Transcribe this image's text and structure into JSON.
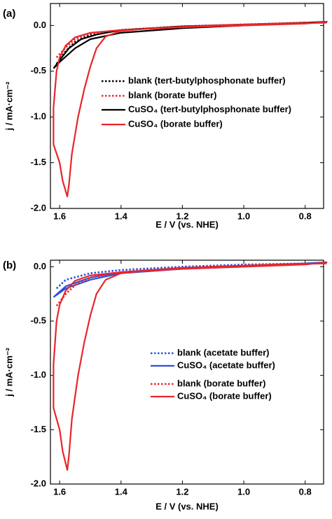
{
  "chart_data": [
    {
      "type": "line",
      "label": "(a)",
      "x_label": "E / V (vs. NHE)",
      "y_label": "j / mA·cm⁻²",
      "xlim": [
        1.63,
        0.74
      ],
      "ylim": [
        -2.0,
        0.24
      ],
      "xticks": [
        1.6,
        1.4,
        1.2,
        {
          "value": 1.0,
          "label": "1.0"
        },
        0.8
      ],
      "yticks": [
        {
          "value": 0,
          "label": "0.0"
        },
        -0.5,
        {
          "value": -1.0,
          "label": "-1.0"
        },
        -1.5,
        {
          "value": -2.0,
          "label": "-2.0"
        }
      ],
      "series": [
        {
          "name": "blank (tert-butylphosphonate buffer)",
          "color": "#000000",
          "dash": "dotted",
          "x": [
            1.61,
            1.58,
            1.55,
            1.5,
            1.4,
            1.2,
            1.0,
            0.8
          ],
          "values": [
            -0.42,
            -0.28,
            -0.18,
            -0.1,
            -0.05,
            -0.01,
            0.01,
            0.03
          ]
        },
        {
          "name": "blank (borate buffer)",
          "color": "#e8262a",
          "dash": "dotted",
          "x": [
            1.61,
            1.58,
            1.55,
            1.5,
            1.4,
            1.2,
            1.0,
            0.8
          ],
          "values": [
            -0.35,
            -0.24,
            -0.15,
            -0.09,
            -0.05,
            -0.01,
            0.01,
            0.03
          ]
        },
        {
          "name": "CuSO₄ (tert-butylphosphonate buffer)",
          "color": "#000000",
          "dash": "solid",
          "x": [
            1.62,
            1.6,
            1.57,
            1.53,
            1.48,
            1.4,
            1.2,
            1.0,
            0.8,
            0.73,
            0.8,
            1.0,
            1.2,
            1.4,
            1.5,
            1.55,
            1.6,
            1.62
          ],
          "values": [
            -0.47,
            -0.38,
            -0.25,
            -0.15,
            -0.1,
            -0.05,
            -0.01,
            0.01,
            0.03,
            0.04,
            0.03,
            0.0,
            -0.03,
            -0.08,
            -0.15,
            -0.25,
            -0.4,
            -0.47
          ]
        },
        {
          "name": "CuSO₄ (borate buffer)",
          "color": "#e8262a",
          "dash": "solid",
          "x": [
            0.73,
            0.9,
            1.1,
            1.3,
            1.4,
            1.45,
            1.48,
            1.5,
            1.52,
            1.54,
            1.56,
            1.57,
            1.575,
            1.59,
            1.6,
            1.62,
            1.62,
            1.61,
            1.6,
            1.58,
            1.55,
            1.5,
            1.4,
            1.2,
            1.0,
            0.8,
            0.73
          ],
          "values": [
            0.03,
            0.02,
            0.0,
            -0.03,
            -0.06,
            -0.12,
            -0.25,
            -0.45,
            -0.7,
            -1.0,
            -1.4,
            -1.75,
            -1.87,
            -1.7,
            -1.5,
            -1.3,
            -0.9,
            -0.5,
            -0.35,
            -0.22,
            -0.13,
            -0.08,
            -0.05,
            -0.02,
            0.0,
            0.02,
            0.04
          ]
        }
      ]
    },
    {
      "type": "line",
      "label": "(b)",
      "x_label": "E / V (vs. NHE)",
      "y_label": "j / mA·cm⁻²",
      "xlim": [
        1.63,
        0.74
      ],
      "ylim": [
        -2.0,
        0.06
      ],
      "xticks": [
        1.6,
        1.4,
        1.2,
        {
          "value": 1.0,
          "label": "1.0"
        },
        0.8
      ],
      "yticks": [
        {
          "value": 0,
          "label": "0.0"
        },
        -0.5,
        {
          "value": -1.0,
          "label": "-1.0"
        },
        -1.5,
        {
          "value": -2.0,
          "label": "-2.0"
        }
      ],
      "series": [
        {
          "name": "blank (acetate buffer)",
          "color": "#2b50e0",
          "dash": "dotted",
          "x": [
            1.61,
            1.58,
            1.5,
            1.4,
            1.2,
            1.0,
            0.8,
            0.73
          ],
          "values": [
            -0.2,
            -0.12,
            -0.06,
            -0.03,
            0.0,
            0.02,
            0.03,
            0.04
          ]
        },
        {
          "name": "CuSO₄ (acetate buffer)",
          "color": "#2b50e0",
          "dash": "solid",
          "x": [
            1.62,
            1.58,
            1.5,
            1.4,
            1.2,
            1.0,
            0.8,
            0.73,
            0.8,
            1.0,
            1.2,
            1.4,
            1.5,
            1.58,
            1.62
          ],
          "values": [
            -0.28,
            -0.18,
            -0.1,
            -0.05,
            -0.01,
            0.01,
            0.03,
            0.04,
            0.03,
            0.0,
            -0.02,
            -0.06,
            -0.12,
            -0.2,
            -0.28
          ]
        },
        {
          "name": "blank (borate buffer)",
          "color": "#e8262a",
          "dash": "dotted",
          "x": [
            1.61,
            1.58,
            1.55,
            1.5,
            1.4,
            1.2,
            1.0,
            0.8
          ],
          "values": [
            -0.36,
            -0.25,
            -0.17,
            -0.1,
            -0.05,
            -0.01,
            0.01,
            0.03
          ]
        },
        {
          "name": "CuSO₄ (borate buffer)",
          "color": "#e8262a",
          "dash": "solid",
          "x": [
            0.73,
            0.9,
            1.1,
            1.3,
            1.4,
            1.45,
            1.48,
            1.5,
            1.52,
            1.54,
            1.56,
            1.57,
            1.575,
            1.59,
            1.6,
            1.62,
            1.62,
            1.61,
            1.6,
            1.58,
            1.55,
            1.5,
            1.4,
            1.2,
            1.0,
            0.8,
            0.73
          ],
          "values": [
            0.03,
            0.02,
            0.0,
            -0.03,
            -0.06,
            -0.12,
            -0.25,
            -0.45,
            -0.7,
            -1.0,
            -1.4,
            -1.75,
            -1.87,
            -1.7,
            -1.5,
            -1.3,
            -0.9,
            -0.5,
            -0.35,
            -0.22,
            -0.13,
            -0.08,
            -0.05,
            -0.02,
            0.0,
            0.02,
            0.04
          ]
        }
      ]
    }
  ]
}
